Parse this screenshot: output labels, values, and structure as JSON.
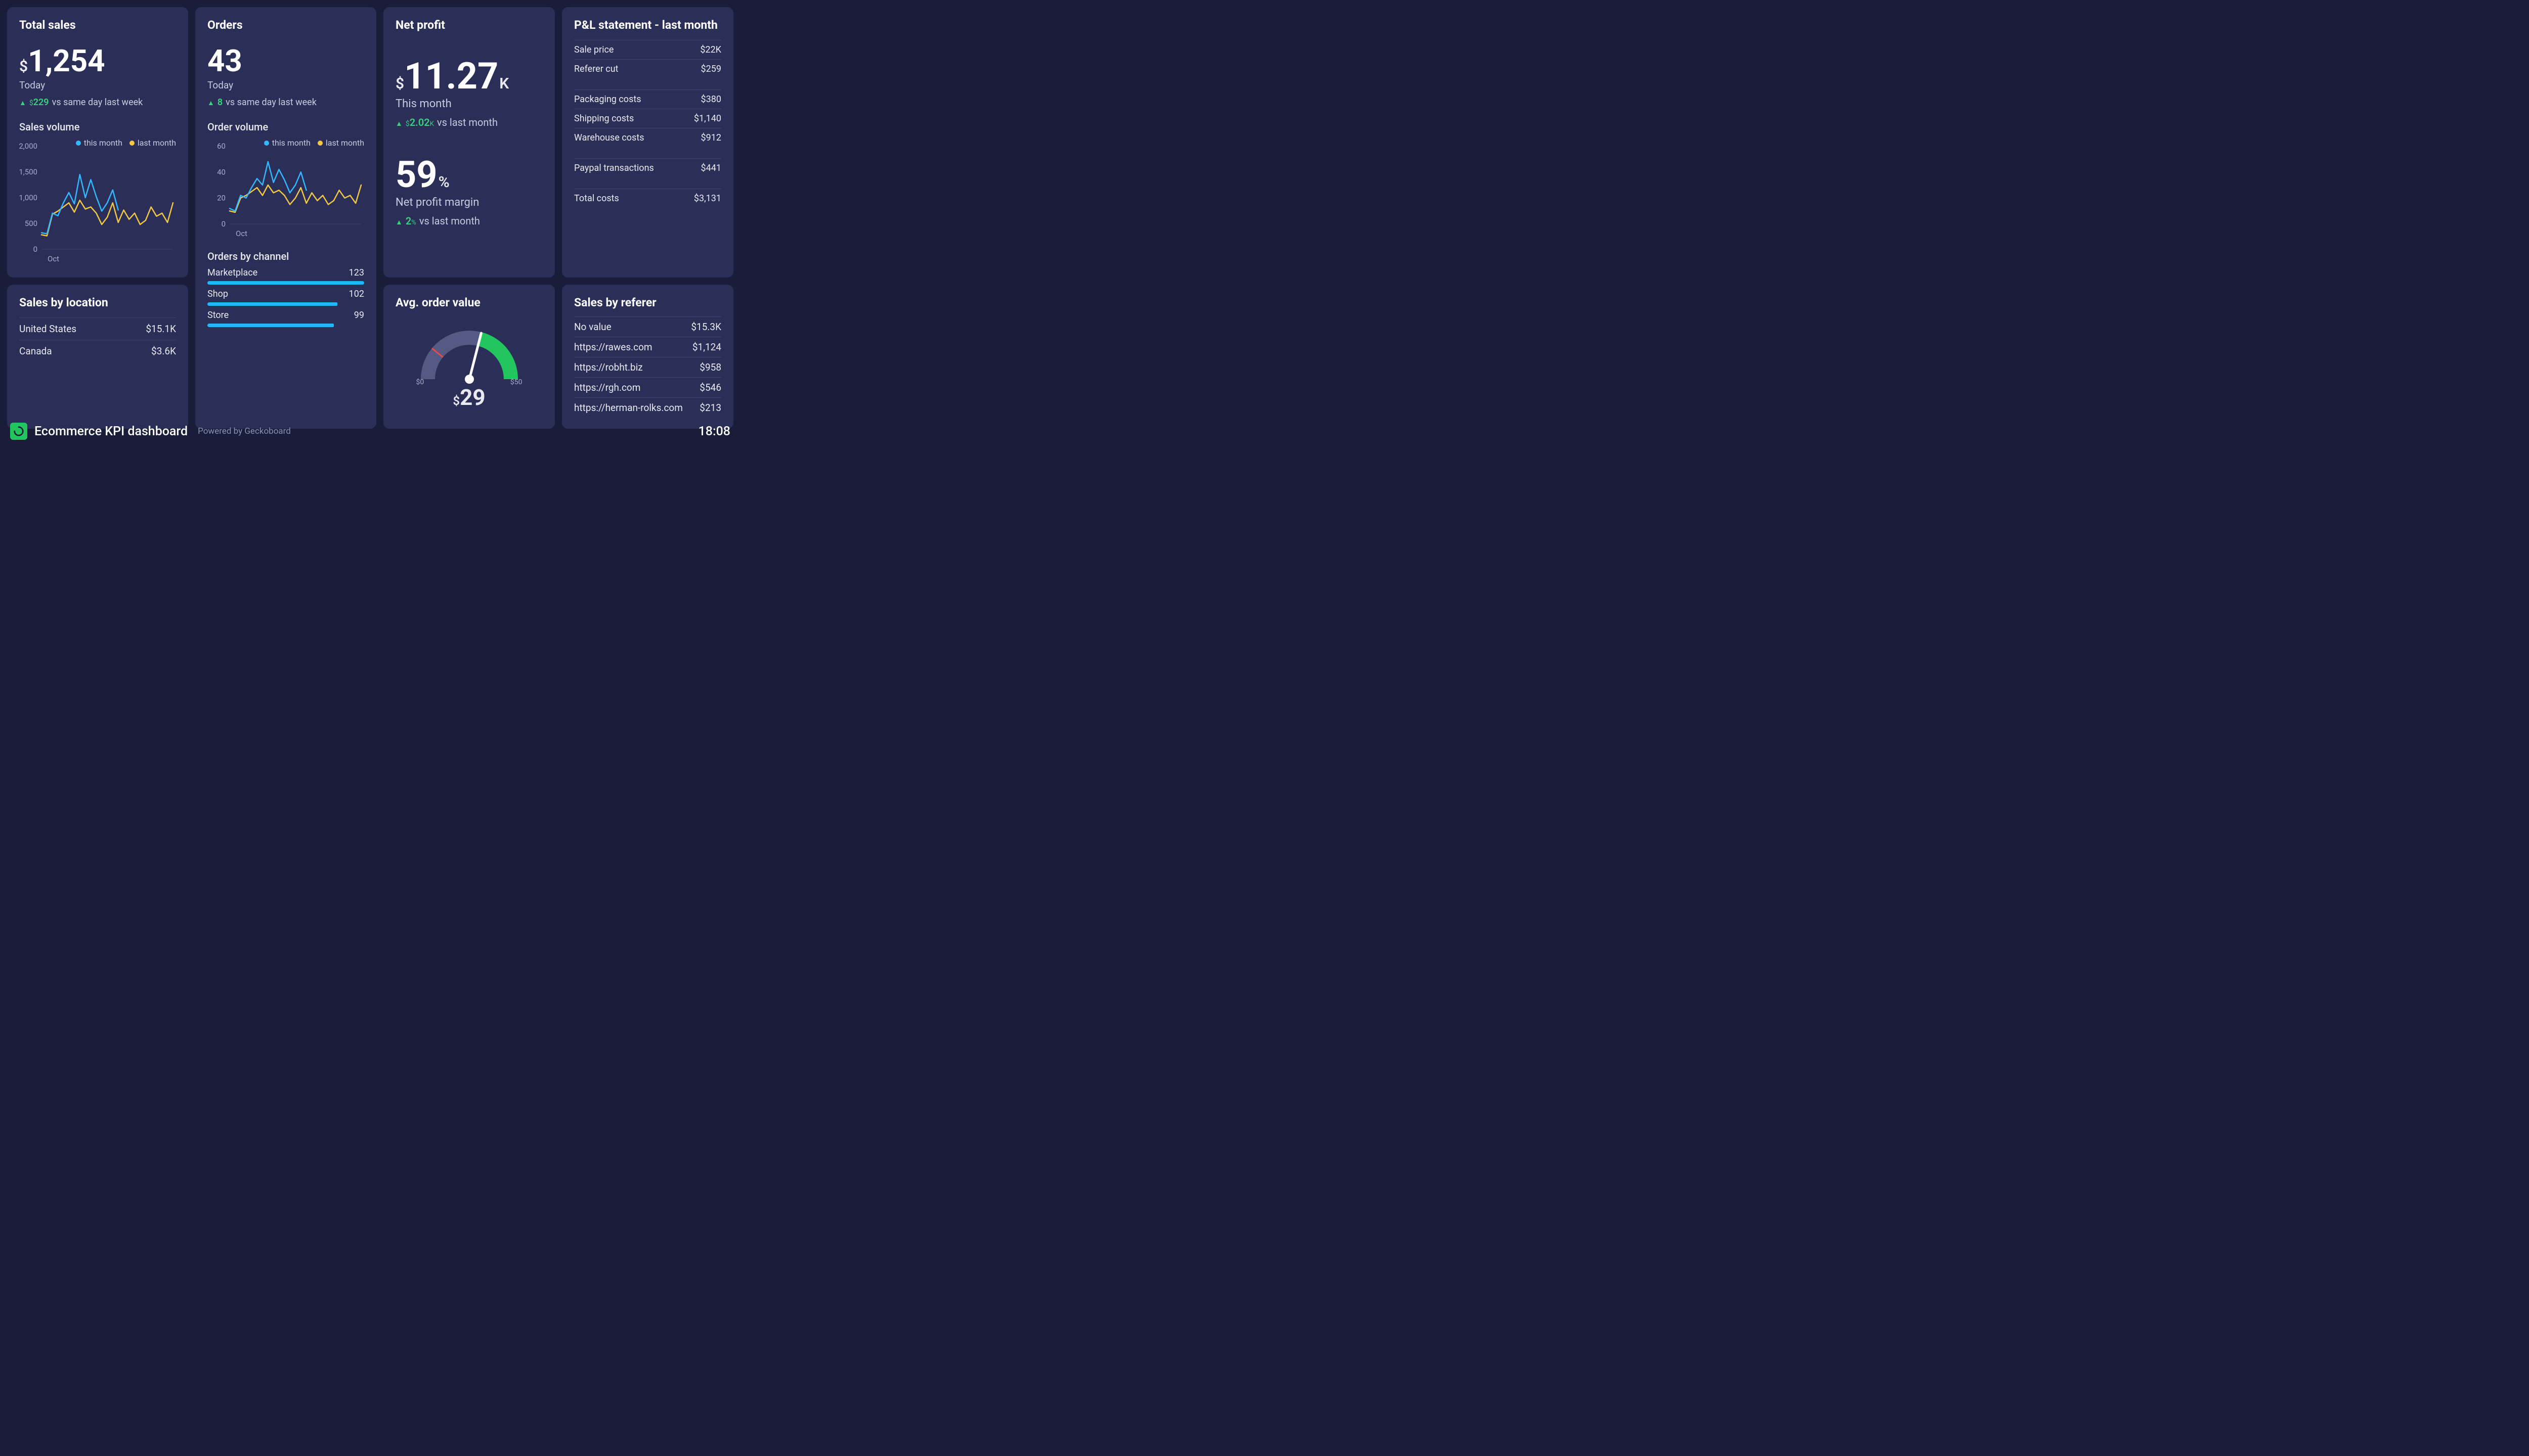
{
  "colors": {
    "page_bg": "#1a1d3a",
    "card_bg": "#2b2f58",
    "text_primary": "#ffffff",
    "text_secondary": "#c8cbe0",
    "text_muted": "#a8acc8",
    "divider": "#3e4270",
    "accent_green": "#35d47a",
    "series_this": "#33b8ff",
    "series_last": "#f2c744",
    "bar_fill": "#21b7ff",
    "gauge_track": "#555a84",
    "gauge_fill": "#22c55e",
    "gauge_red": "#e64b4b",
    "logo_bg": "#22c55e"
  },
  "footer": {
    "title": "Ecommerce KPI dashboard",
    "powered": "Powered by Geckoboard",
    "clock": "18:08"
  },
  "total_sales": {
    "title": "Total sales",
    "prefix": "$",
    "value": "1,254",
    "sublabel": "Today",
    "delta_prefix": "$",
    "delta_value": "229",
    "delta_text": "vs same day last week",
    "chart_title": "Sales volume",
    "legend_this": "this month",
    "legend_last": "last month",
    "chart": {
      "type": "line",
      "x_label": "Oct",
      "ylim": [
        0,
        2000
      ],
      "yticks": [
        0,
        500,
        1000,
        1500,
        2000
      ],
      "line_width": 2.5,
      "series_this_color": "#33b8ff",
      "series_last_color": "#f2c744",
      "this_month": [
        320,
        300,
        700,
        650,
        900,
        1100,
        880,
        1450,
        1000,
        1350,
        1020,
        740,
        900,
        1150,
        760
      ],
      "last_month": [
        280,
        260,
        680,
        740,
        820,
        900,
        720,
        950,
        780,
        820,
        700,
        480,
        620,
        900,
        520,
        760,
        580,
        700,
        480,
        560,
        820,
        640,
        700,
        520,
        900
      ]
    }
  },
  "orders": {
    "title": "Orders",
    "value": "43",
    "sublabel": "Today",
    "delta_value": "8",
    "delta_text": "vs same day last week",
    "chart_title": "Order volume",
    "legend_this": "this month",
    "legend_last": "last month",
    "chart": {
      "type": "line",
      "x_label": "Oct",
      "ylim": [
        0,
        60
      ],
      "yticks": [
        0,
        20,
        40,
        60
      ],
      "line_width": 2.5,
      "series_this_color": "#33b8ff",
      "series_last_color": "#f2c744",
      "this_month": [
        12,
        10,
        22,
        20,
        28,
        35,
        30,
        48,
        32,
        42,
        34,
        24,
        30,
        40,
        26
      ],
      "last_month": [
        10,
        9,
        20,
        22,
        25,
        28,
        22,
        30,
        24,
        26,
        22,
        15,
        20,
        28,
        16,
        24,
        18,
        22,
        15,
        18,
        26,
        20,
        22,
        16,
        30
      ]
    },
    "channels_title": "Orders by channel",
    "channels_max": 123,
    "channels": [
      {
        "label": "Marketplace",
        "value": 123,
        "display": "123"
      },
      {
        "label": "Shop",
        "value": 102,
        "display": "102"
      },
      {
        "label": "Store",
        "value": 99,
        "display": "99"
      }
    ]
  },
  "net_profit": {
    "title": "Net profit",
    "prefix": "$",
    "value": "11.27",
    "suffix": "K",
    "sublabel": "This month",
    "delta_prefix": "$",
    "delta_value": "2.02",
    "delta_suffix": "K",
    "delta_text": "vs last month",
    "margin_value": "59",
    "margin_suffix": "%",
    "margin_label": "Net profit margin",
    "margin_delta_value": "2",
    "margin_delta_suffix": "%",
    "margin_delta_text": "vs last month"
  },
  "pl": {
    "title": "P&L statement - last month",
    "groups": [
      [
        {
          "label": "Sale price",
          "value": "$22K"
        },
        {
          "label": "Referer cut",
          "value": "$259"
        }
      ],
      [
        {
          "label": "Packaging costs",
          "value": "$380"
        },
        {
          "label": "Shipping costs",
          "value": "$1,140"
        },
        {
          "label": "Warehouse costs",
          "value": "$912"
        }
      ],
      [
        {
          "label": "Paypal transactions",
          "value": "$441"
        }
      ],
      [
        {
          "label": "Total costs",
          "value": "$3,131"
        }
      ]
    ]
  },
  "sales_location": {
    "title": "Sales by location",
    "rows": [
      {
        "label": "United States",
        "value": "$15.1K"
      },
      {
        "label": "Canada",
        "value": "$3.6K"
      }
    ]
  },
  "avg_order": {
    "title": "Avg. order value",
    "prefix": "$",
    "value": "29",
    "min_label": "$0",
    "max_label": "$50",
    "gauge": {
      "type": "gauge",
      "min": 0,
      "max": 50,
      "value": 29,
      "red_threshold": 11,
      "track_color": "#555a84",
      "fill_color": "#22c55e",
      "needle_color": "#ffffff",
      "red_tick_color": "#e64b4b"
    }
  },
  "sales_referer": {
    "title": "Sales by referer",
    "rows": [
      {
        "label": "No value",
        "value": "$15.3K"
      },
      {
        "label": "https://rawes.com",
        "value": "$1,124"
      },
      {
        "label": "https://robht.biz",
        "value": "$958"
      },
      {
        "label": "https://rgh.com",
        "value": "$546"
      },
      {
        "label": "https://herman-rolks.com",
        "value": "$213"
      }
    ]
  }
}
